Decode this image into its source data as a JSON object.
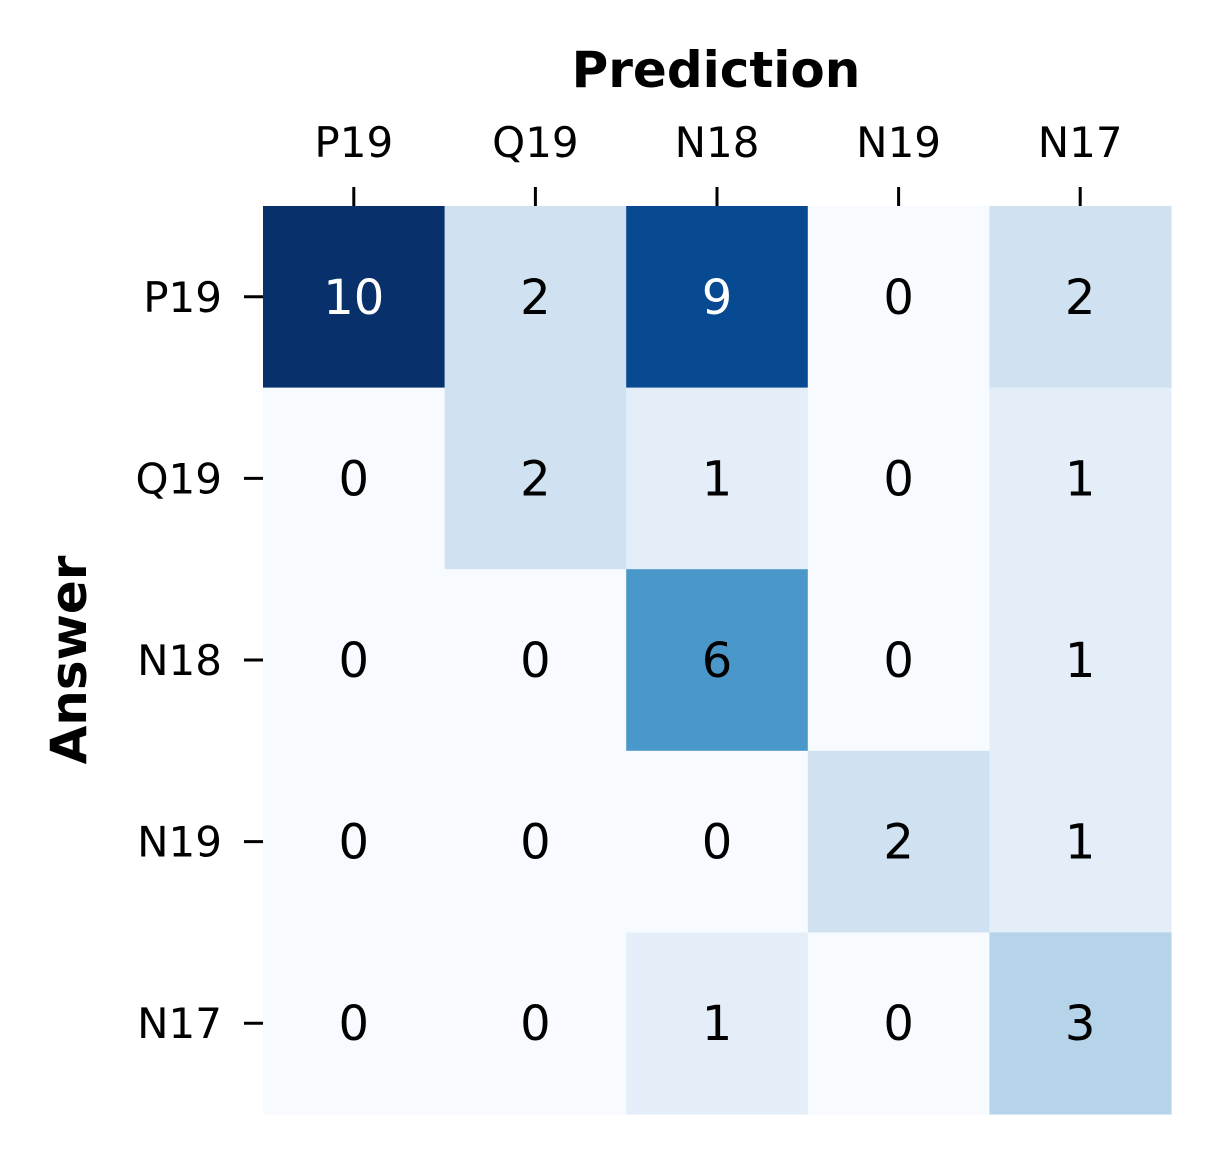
{
  "chart_data": {
    "type": "heatmap",
    "title": "",
    "xlabel": "Prediction",
    "ylabel": "Answer",
    "x_categories": [
      "P19",
      "Q19",
      "N18",
      "N19",
      "N17"
    ],
    "y_categories": [
      "P19",
      "Q19",
      "N18",
      "N19",
      "N17"
    ],
    "values": [
      [
        10,
        2,
        9,
        0,
        2
      ],
      [
        0,
        2,
        1,
        0,
        1
      ],
      [
        0,
        0,
        6,
        0,
        1
      ],
      [
        0,
        0,
        0,
        2,
        1
      ],
      [
        0,
        0,
        1,
        0,
        3
      ]
    ],
    "colormap": "Blues",
    "vmin": 0,
    "vmax": 10,
    "x_axis_position": "top",
    "colorbar": false,
    "grid": false
  }
}
